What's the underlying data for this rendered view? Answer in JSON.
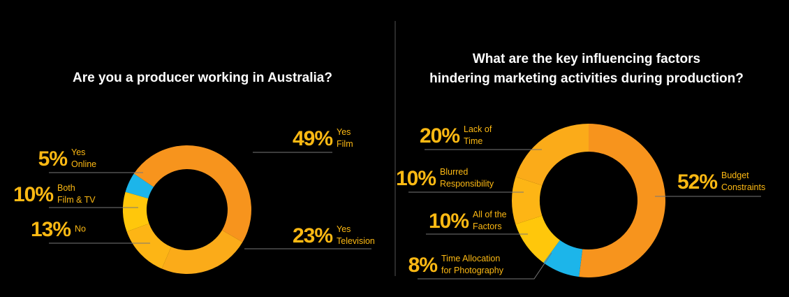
{
  "chart_data": [
    {
      "type": "pie",
      "title": [
        "Are you a producer working in Australia?"
      ],
      "categories": [
        [
          "Yes",
          "Film"
        ],
        [
          "Yes",
          "Television"
        ],
        [
          "No"
        ],
        [
          "Both",
          "Film & TV"
        ],
        [
          "Yes",
          "Online"
        ]
      ],
      "values": [
        49,
        23,
        13,
        10,
        5
      ],
      "value_labels": [
        "49%",
        "23%",
        "13%",
        "10%",
        "5%"
      ],
      "colors": [
        "#f7941d",
        "#fbab19",
        "#fdb515",
        "#ffc70b",
        "#1cb5ea"
      ]
    },
    {
      "type": "pie",
      "title": [
        "What are the key influencing factors",
        "hindering marketing activities during production?"
      ],
      "categories": [
        [
          "Budget",
          "Constraints"
        ],
        [
          "Time Allocation",
          "for Photography"
        ],
        [
          "All of the",
          "Factors"
        ],
        [
          "Blurred",
          "Responsibility"
        ],
        [
          "Lack of",
          "Time"
        ]
      ],
      "values": [
        52,
        8,
        10,
        10,
        20
      ],
      "value_labels": [
        "52%",
        "8%",
        "10%",
        "10%",
        "20%"
      ],
      "colors": [
        "#f7941d",
        "#1cb5ea",
        "#ffc70b",
        "#fdb515",
        "#fbab19"
      ]
    }
  ]
}
